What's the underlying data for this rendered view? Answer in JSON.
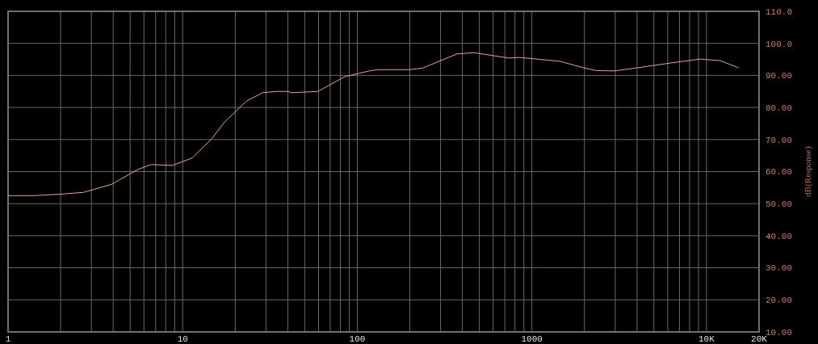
{
  "chart_data": {
    "type": "line",
    "ylabel": "dB(Response)",
    "log": "x",
    "grid": true,
    "xlim": [
      1,
      20000
    ],
    "xticks": [
      1,
      {
        "value": 2,
        "label": null
      },
      {
        "value": 3,
        "label": null
      },
      {
        "value": 4,
        "label": null
      },
      {
        "value": 5,
        "label": null
      },
      {
        "value": 6,
        "label": null
      },
      {
        "value": 7,
        "label": null
      },
      {
        "value": 8,
        "label": null
      },
      {
        "value": 9,
        "label": null
      },
      10,
      {
        "value": 20,
        "label": null
      },
      {
        "value": 30,
        "label": null
      },
      {
        "value": 40,
        "label": null
      },
      {
        "value": 50,
        "label": null
      },
      {
        "value": 60,
        "label": null
      },
      {
        "value": 70,
        "label": null
      },
      {
        "value": 80,
        "label": null
      },
      {
        "value": 90,
        "label": null
      },
      100,
      {
        "value": 200,
        "label": null
      },
      {
        "value": 300,
        "label": null
      },
      {
        "value": 400,
        "label": null
      },
      {
        "value": 500,
        "label": null
      },
      {
        "value": 600,
        "label": null
      },
      {
        "value": 700,
        "label": null
      },
      {
        "value": 800,
        "label": null
      },
      {
        "value": 900,
        "label": null
      },
      1000,
      {
        "value": 2000,
        "label": null
      },
      {
        "value": 3000,
        "label": null
      },
      {
        "value": 4000,
        "label": null
      },
      {
        "value": 5000,
        "label": null
      },
      {
        "value": 6000,
        "label": null
      },
      {
        "value": 7000,
        "label": null
      },
      {
        "value": 8000,
        "label": null
      },
      {
        "value": 9000,
        "label": null
      },
      {
        "value": 10000,
        "label": "10K"
      },
      {
        "value": 20000,
        "label": "20K"
      }
    ],
    "ylim": [
      10,
      110
    ],
    "yticks": [
      {
        "value": 10,
        "label": "10.00"
      },
      {
        "value": 20,
        "label": "20.00"
      },
      {
        "value": 30,
        "label": "30.00"
      },
      {
        "value": 40,
        "label": "40.00"
      },
      {
        "value": 50,
        "label": "50.00"
      },
      {
        "value": 60,
        "label": "60.00"
      },
      {
        "value": 70,
        "label": "70.00"
      },
      {
        "value": 80,
        "label": "80.00"
      },
      {
        "value": 90,
        "label": "90.00"
      },
      {
        "value": 100,
        "label": "100.0"
      },
      {
        "value": 110,
        "label": "110.0"
      }
    ],
    "series": [
      {
        "color": "#e8a0a0",
        "x": [
          1,
          1.42,
          2.04,
          2.69,
          3.91,
          5.5,
          6.6,
          8.7,
          11.3,
          14.7,
          17.4,
          23.2,
          28.7,
          34.3,
          40.3,
          41.8,
          59.5,
          84.7,
          117,
          132,
          199,
          237,
          372,
          466,
          610,
          740,
          851,
          1022,
          1450,
          1973,
          2340,
          2960,
          3940,
          5900,
          9190,
          12000,
          15230
        ],
        "values": [
          52.5,
          52.5,
          53.0,
          53.5,
          56.0,
          60.6,
          62.2,
          61.9,
          64.2,
          70.3,
          75.5,
          82.0,
          84.6,
          85.0,
          85.0,
          84.6,
          85.0,
          89.6,
          91.4,
          91.8,
          91.8,
          92.3,
          96.7,
          97.1,
          96.1,
          95.4,
          95.6,
          95.2,
          94.4,
          92.4,
          91.5,
          91.4,
          92.3,
          93.7,
          95.1,
          94.6,
          92.4
        ]
      }
    ]
  }
}
